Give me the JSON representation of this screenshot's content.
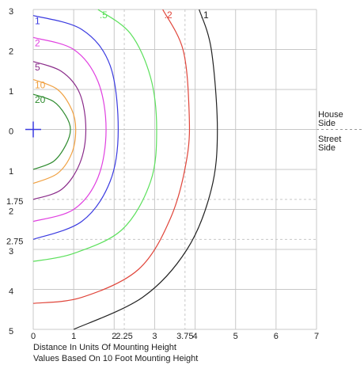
{
  "chart_data": {
    "type": "contour",
    "xlabel": "Distance In Units Of Mounting Height",
    "note": "Values Based On 10 Foot Mounting Height",
    "side_top": "House Side",
    "side_bottom": "Street Side",
    "xlim": [
      0,
      7
    ],
    "ylim": [
      -5,
      3
    ],
    "xticks": [
      0,
      1,
      2,
      2.25,
      3,
      3.75,
      4,
      5,
      6,
      7
    ],
    "yticks": [
      3,
      2,
      1,
      0,
      {
        "value": -1,
        "label": "1"
      },
      {
        "value": -1.75,
        "label": "1.75"
      },
      {
        "value": -2,
        "label": "2"
      },
      {
        "value": -2.75,
        "label": "2.75"
      },
      {
        "value": -3,
        "label": "3"
      },
      {
        "value": -4,
        "label": "4"
      },
      {
        "value": -5,
        "label": "5"
      }
    ],
    "grid": true,
    "series": [
      {
        "name": "20",
        "color": "#2e8b2e",
        "x": [
          0,
          0.5,
          0.8,
          0.92,
          0.8,
          0.5,
          0
        ],
        "y": [
          0.88,
          0.7,
          0.35,
          0,
          -0.4,
          -0.8,
          -1.0
        ]
      },
      {
        "name": "10",
        "color": "#f0a040",
        "x": [
          0,
          0.6,
          0.95,
          1.05,
          0.95,
          0.6,
          0
        ],
        "y": [
          1.25,
          1.0,
          0.5,
          0,
          -0.6,
          -1.1,
          -1.35
        ]
      },
      {
        "name": "5",
        "color": "#8a2b8a",
        "x": [
          0,
          0.7,
          1.15,
          1.3,
          1.15,
          0.7,
          0
        ],
        "y": [
          1.7,
          1.45,
          0.9,
          0,
          -0.85,
          -1.5,
          -1.75
        ]
      },
      {
        "name": "2",
        "color": "#e040e0",
        "x": [
          0,
          1.0,
          1.6,
          1.8,
          1.6,
          1.0,
          0
        ],
        "y": [
          2.3,
          2.0,
          1.2,
          0,
          -1.2,
          -2.0,
          -2.3
        ]
      },
      {
        "name": "1",
        "color": "#3a3ae0",
        "x": [
          0,
          1.2,
          1.9,
          2.1,
          1.9,
          1.2,
          0
        ],
        "y": [
          2.85,
          2.5,
          1.6,
          0,
          -1.3,
          -2.3,
          -2.75
        ]
      },
      {
        "name": ".5",
        "color": "#5ce05c",
        "x": [
          1.6,
          2.4,
          2.9,
          3.05,
          2.9,
          2.2,
          1.0,
          0
        ],
        "y": [
          3,
          2.4,
          1.3,
          0,
          -1.3,
          -2.5,
          -3.1,
          -3.3
        ]
      },
      {
        "name": ".2",
        "color": "#e0453a",
        "x": [
          3.2,
          3.7,
          3.85,
          3.8,
          3.4,
          2.6,
          1.2,
          0
        ],
        "y": [
          3,
          2.0,
          0.5,
          -0.7,
          -2.2,
          -3.5,
          -4.2,
          -4.35
        ]
      },
      {
        "name": ".1",
        "color": "#222222",
        "x": [
          4.1,
          4.4,
          4.55,
          4.4,
          3.8,
          2.7,
          1.0
        ],
        "y": [
          3,
          2.0,
          0,
          -1.5,
          -3.0,
          -4.2,
          -5
        ]
      }
    ]
  }
}
